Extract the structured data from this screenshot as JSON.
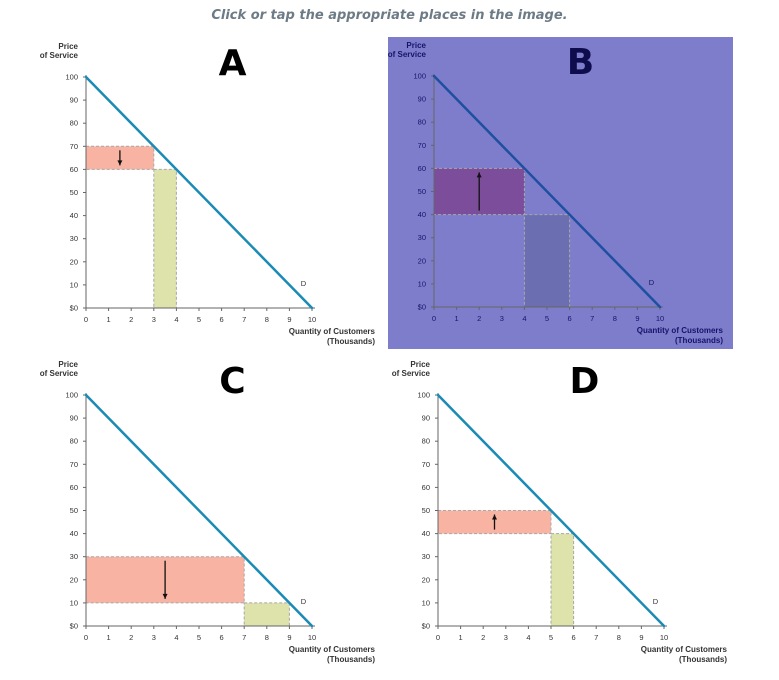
{
  "instruction": "Click or tap the appropriate places in the image.",
  "colors": {
    "demand_line": "#1a8bb5",
    "demand_line_selected": "#1f4fa0",
    "price_rect": "#f8b3a3",
    "price_rect_selected": "#7b4d9b",
    "quantity_rect": "#dde3ab",
    "quantity_rect_selected": "#6b6fb1",
    "selected_bg": "#7d7dcb",
    "dashed_border": "#a8a8a8",
    "text": "#333333",
    "selected_text": "#16146a",
    "letter_selected": "#0f0c4e"
  },
  "chart_data": [
    {
      "type": "area",
      "panel_label": "A",
      "selected": false,
      "ylabel": "Price\nof Service",
      "xlabel": "Quantity of Customers\n(Thousands)",
      "xlim": [
        0,
        10
      ],
      "ylim": [
        0,
        100
      ],
      "x_ticks": [
        "0",
        "1",
        "2",
        "3",
        "4",
        "5",
        "6",
        "7",
        "8",
        "9",
        "10"
      ],
      "y_ticks": [
        "$0",
        "10",
        "20",
        "30",
        "40",
        "50",
        "60",
        "70",
        "80",
        "90",
        "100"
      ],
      "demand": {
        "label": "D",
        "points": [
          [
            0,
            100
          ],
          [
            10,
            0
          ]
        ]
      },
      "price_change": {
        "from": 70,
        "to": 60,
        "quantity": 3,
        "direction": "down"
      },
      "quantity_change": {
        "from": 3,
        "to": 4,
        "price": 60
      }
    },
    {
      "type": "area",
      "panel_label": "B",
      "selected": true,
      "ylabel": "Price\nof Service",
      "xlabel": "Quantity of Customers\n(Thousands)",
      "xlim": [
        0,
        10
      ],
      "ylim": [
        0,
        100
      ],
      "x_ticks": [
        "0",
        "1",
        "2",
        "3",
        "4",
        "5",
        "6",
        "7",
        "8",
        "9",
        "10"
      ],
      "y_ticks": [
        "$0",
        "10",
        "20",
        "30",
        "40",
        "50",
        "60",
        "70",
        "80",
        "90",
        "100"
      ],
      "demand": {
        "label": "D",
        "points": [
          [
            0,
            100
          ],
          [
            10,
            0
          ]
        ]
      },
      "price_change": {
        "from": 40,
        "to": 60,
        "quantity": 4,
        "direction": "up"
      },
      "quantity_change": {
        "from": 4,
        "to": 6,
        "price": 40
      }
    },
    {
      "type": "area",
      "panel_label": "C",
      "selected": false,
      "ylabel": "Price\nof Service",
      "xlabel": "Quantity of Customers\n(Thousands)",
      "xlim": [
        0,
        10
      ],
      "ylim": [
        0,
        100
      ],
      "x_ticks": [
        "0",
        "1",
        "2",
        "3",
        "4",
        "5",
        "6",
        "7",
        "8",
        "9",
        "10"
      ],
      "y_ticks": [
        "$0",
        "10",
        "20",
        "30",
        "40",
        "50",
        "60",
        "70",
        "80",
        "90",
        "100"
      ],
      "demand": {
        "label": "D",
        "points": [
          [
            0,
            100
          ],
          [
            10,
            0
          ]
        ]
      },
      "price_change": {
        "from": 30,
        "to": 10,
        "quantity": 7,
        "direction": "down"
      },
      "quantity_change": {
        "from": 7,
        "to": 9,
        "price": 10
      }
    },
    {
      "type": "area",
      "panel_label": "D",
      "selected": false,
      "ylabel": "Price\nof Service",
      "xlabel": "Quantity of Customers\n(Thousands)",
      "xlim": [
        0,
        10
      ],
      "ylim": [
        0,
        100
      ],
      "x_ticks": [
        "0",
        "1",
        "2",
        "3",
        "4",
        "5",
        "6",
        "7",
        "8",
        "9",
        "10"
      ],
      "y_ticks": [
        "$0",
        "10",
        "20",
        "30",
        "40",
        "50",
        "60",
        "70",
        "80",
        "90",
        "100"
      ],
      "demand": {
        "label": "D",
        "points": [
          [
            0,
            100
          ],
          [
            10,
            0
          ]
        ]
      },
      "price_change": {
        "from": 40,
        "to": 50,
        "quantity": 5,
        "direction": "up"
      },
      "quantity_change": {
        "from": 5,
        "to": 6,
        "price": 40
      }
    }
  ]
}
